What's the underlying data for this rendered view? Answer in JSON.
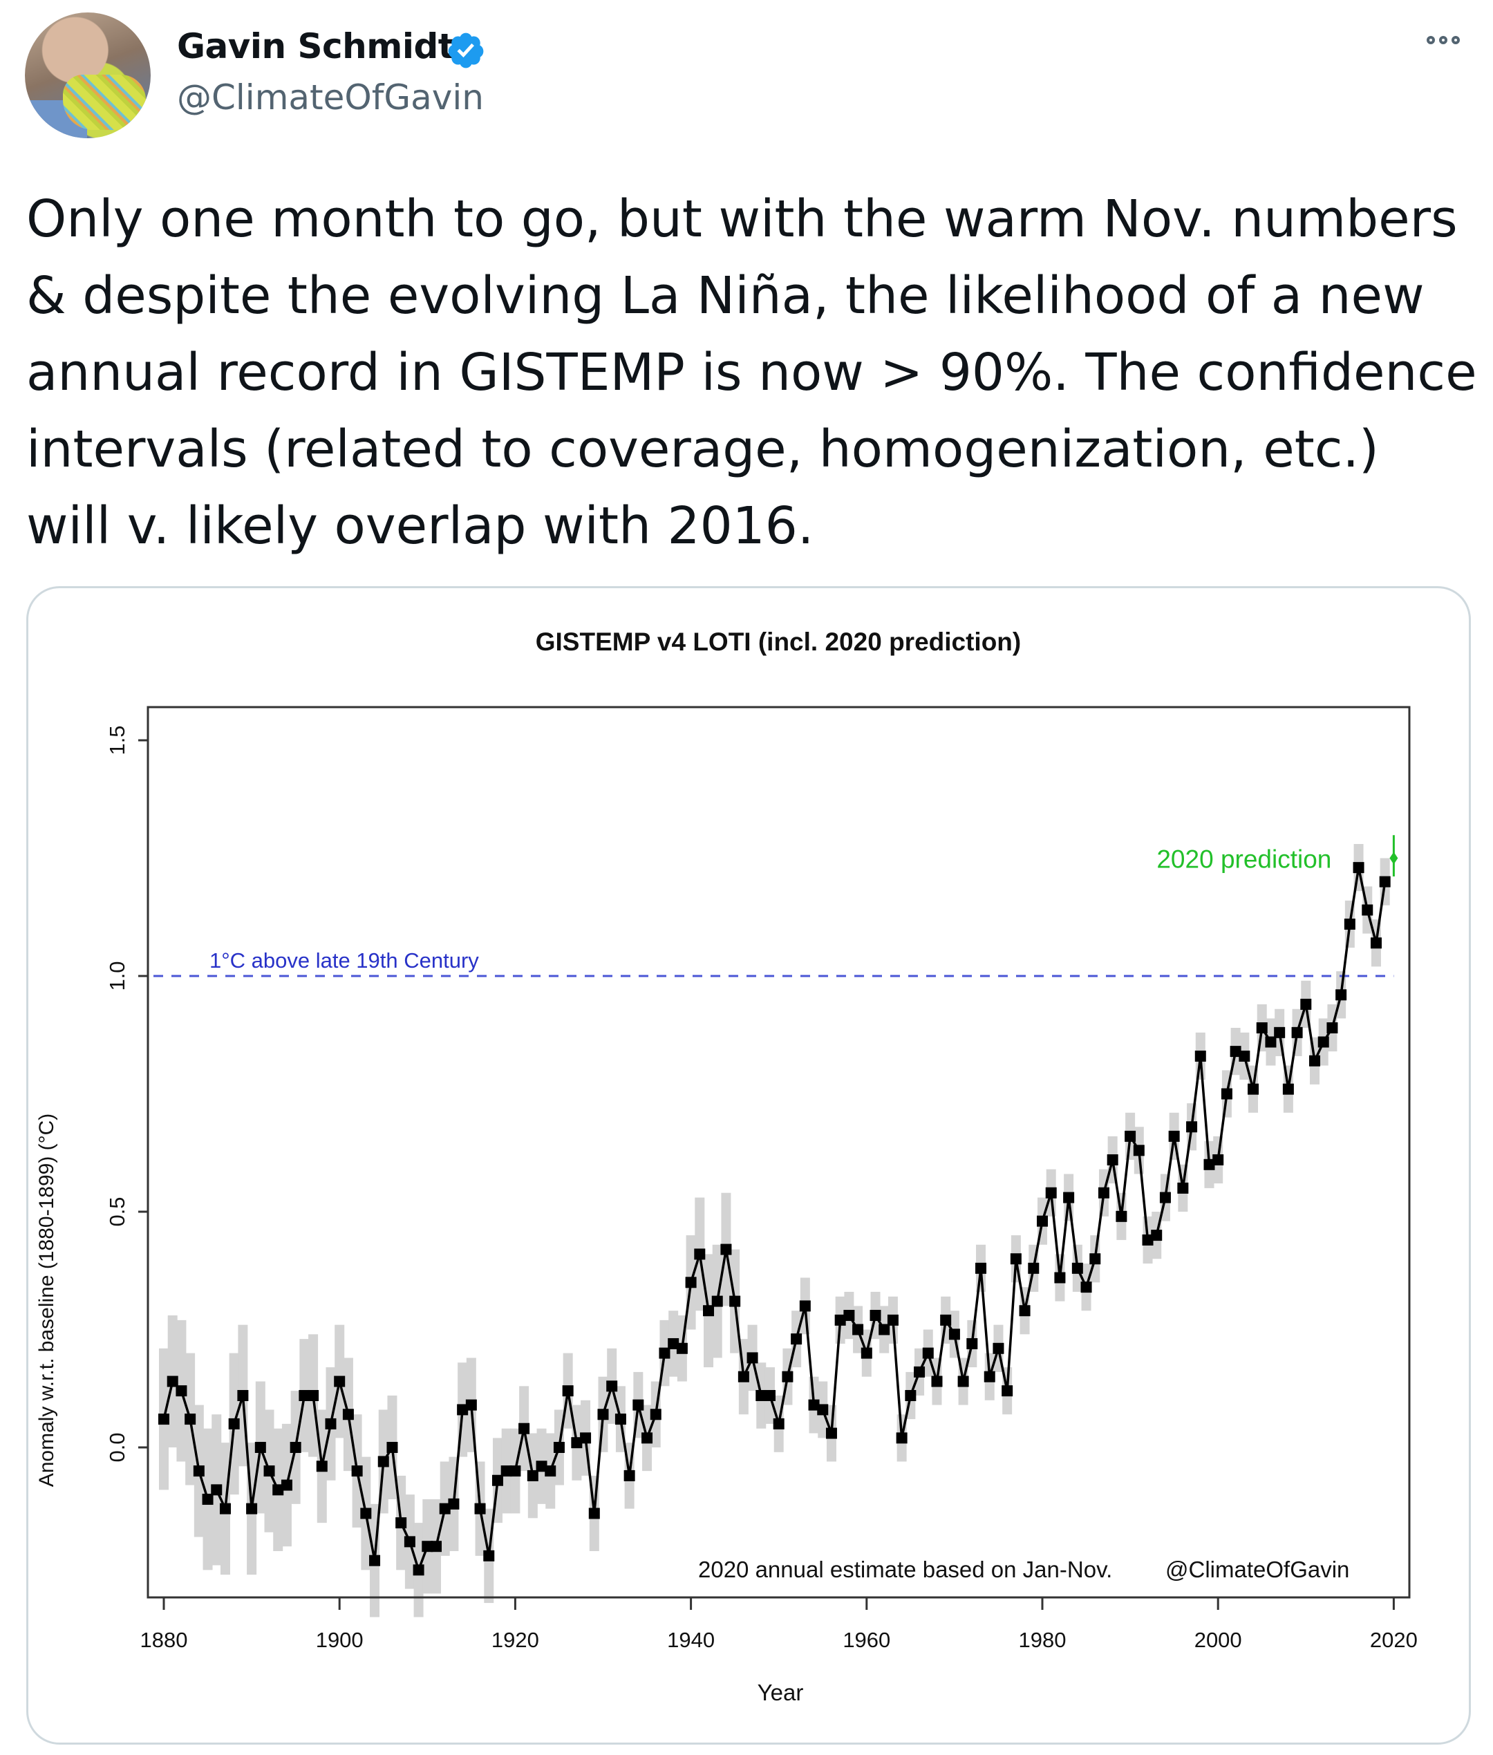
{
  "author": {
    "name": "Gavin Schmidt",
    "handle": "@ClimateOfGavin",
    "verified": true,
    "verified_color": "#1d9bf0"
  },
  "more_icon": "more-options-icon",
  "tweet_text": "Only one month to go, but with the warm Nov. numbers & despite the evolving La Niña, the likelihood of a new annual record in GISTEMP is now > 90%. The confidence intervals (related to coverage, homogenization, etc.) will v. likely overlap with 2016.",
  "chart_data": {
    "type": "line",
    "title": "GISTEMP v4 LOTI (incl. 2020 prediction)",
    "xlabel": "Year",
    "ylabel": "Anomaly w.r.t. baseline (1880-1899) (°C)",
    "xlim": [
      1877,
      2022
    ],
    "ylim": [
      -0.32,
      1.57
    ],
    "xticks": [
      1880,
      1900,
      1920,
      1940,
      1960,
      1980,
      2000,
      2020
    ],
    "xtick_labels": [
      "1880",
      "1900",
      "1920",
      "1940",
      "1960",
      "1980",
      "2000",
      "2020"
    ],
    "yticks": [
      0.0,
      0.5,
      1.0,
      1.5
    ],
    "ytick_labels": [
      "0.0",
      "0.5",
      "1.0",
      "1.5"
    ],
    "grid": false,
    "reference_line": {
      "y": 1.0,
      "label": "1°C above late 19th Century",
      "color": "#4a56d6",
      "style": "dashed"
    },
    "prediction": {
      "x": 2020,
      "y": 1.25,
      "low": 1.22,
      "high": 1.29,
      "label": "2020 prediction",
      "color": "#22c02a"
    },
    "annotation": "2020 annual estimate based on Jan-Nov.",
    "credit": "@ClimateOfGavin",
    "series": [
      {
        "name": "Annual anomaly",
        "color": "#000000",
        "uncertainty_color": "#d3d3d3",
        "x": [
          1880,
          1881,
          1882,
          1883,
          1884,
          1885,
          1886,
          1887,
          1888,
          1889,
          1890,
          1891,
          1892,
          1893,
          1894,
          1895,
          1896,
          1897,
          1898,
          1899,
          1900,
          1901,
          1902,
          1903,
          1904,
          1905,
          1906,
          1907,
          1908,
          1909,
          1910,
          1911,
          1912,
          1913,
          1914,
          1915,
          1916,
          1917,
          1918,
          1919,
          1920,
          1921,
          1922,
          1923,
          1924,
          1925,
          1926,
          1927,
          1928,
          1929,
          1930,
          1931,
          1932,
          1933,
          1934,
          1935,
          1936,
          1937,
          1938,
          1939,
          1940,
          1941,
          1942,
          1943,
          1944,
          1945,
          1946,
          1947,
          1948,
          1949,
          1950,
          1951,
          1952,
          1953,
          1954,
          1955,
          1956,
          1957,
          1958,
          1959,
          1960,
          1961,
          1962,
          1963,
          1964,
          1965,
          1966,
          1967,
          1968,
          1969,
          1970,
          1971,
          1972,
          1973,
          1974,
          1975,
          1976,
          1977,
          1978,
          1979,
          1980,
          1981,
          1982,
          1983,
          1984,
          1985,
          1986,
          1987,
          1988,
          1989,
          1990,
          1991,
          1992,
          1993,
          1994,
          1995,
          1996,
          1997,
          1998,
          1999,
          2000,
          2001,
          2002,
          2003,
          2004,
          2005,
          2006,
          2007,
          2008,
          2009,
          2010,
          2011,
          2012,
          2013,
          2014,
          2015,
          2016,
          2017,
          2018,
          2019
        ],
        "values": [
          0.06,
          0.14,
          0.12,
          0.06,
          -0.05,
          -0.11,
          -0.09,
          -0.13,
          0.05,
          0.11,
          -0.13,
          0.0,
          -0.05,
          -0.09,
          -0.08,
          0.0,
          0.11,
          0.11,
          -0.04,
          0.05,
          0.14,
          0.07,
          -0.05,
          -0.14,
          -0.24,
          -0.03,
          0.0,
          -0.16,
          -0.2,
          -0.26,
          -0.21,
          -0.21,
          -0.13,
          -0.12,
          0.08,
          0.09,
          -0.13,
          -0.23,
          -0.07,
          -0.05,
          -0.05,
          0.04,
          -0.06,
          -0.04,
          -0.05,
          0.0,
          0.12,
          0.01,
          0.02,
          -0.14,
          0.07,
          0.13,
          0.06,
          -0.06,
          0.09,
          0.02,
          0.07,
          0.2,
          0.22,
          0.21,
          0.35,
          0.41,
          0.29,
          0.31,
          0.42,
          0.31,
          0.15,
          0.19,
          0.11,
          0.11,
          0.05,
          0.15,
          0.23,
          0.3,
          0.09,
          0.08,
          0.03,
          0.27,
          0.28,
          0.25,
          0.2,
          0.28,
          0.25,
          0.27,
          0.02,
          0.11,
          0.16,
          0.2,
          0.14,
          0.27,
          0.24,
          0.14,
          0.22,
          0.38,
          0.15,
          0.21,
          0.12,
          0.4,
          0.29,
          0.38,
          0.48,
          0.54,
          0.36,
          0.53,
          0.38,
          0.34,
          0.4,
          0.54,
          0.61,
          0.49,
          0.66,
          0.63,
          0.44,
          0.45,
          0.53,
          0.66,
          0.55,
          0.68,
          0.83,
          0.6,
          0.61,
          0.75,
          0.84,
          0.83,
          0.76,
          0.89,
          0.86,
          0.88,
          0.76,
          0.88,
          0.94,
          0.82,
          0.86,
          0.89,
          0.96,
          1.11,
          1.23,
          1.14,
          1.07,
          1.2
        ],
        "uncertainty_halfwidth": [
          0.15,
          0.14,
          0.15,
          0.14,
          0.14,
          0.15,
          0.16,
          0.14,
          0.15,
          0.15,
          0.14,
          0.14,
          0.13,
          0.13,
          0.13,
          0.12,
          0.12,
          0.13,
          0.12,
          0.12,
          0.12,
          0.12,
          0.12,
          0.12,
          0.12,
          0.11,
          0.11,
          0.1,
          0.1,
          0.1,
          0.1,
          0.1,
          0.1,
          0.1,
          0.1,
          0.1,
          0.1,
          0.1,
          0.09,
          0.09,
          0.09,
          0.09,
          0.09,
          0.08,
          0.08,
          0.08,
          0.08,
          0.08,
          0.08,
          0.08,
          0.08,
          0.08,
          0.07,
          0.07,
          0.07,
          0.07,
          0.07,
          0.07,
          0.07,
          0.07,
          0.1,
          0.12,
          0.12,
          0.12,
          0.12,
          0.11,
          0.08,
          0.07,
          0.07,
          0.06,
          0.06,
          0.06,
          0.06,
          0.06,
          0.06,
          0.06,
          0.06,
          0.05,
          0.05,
          0.05,
          0.05,
          0.05,
          0.05,
          0.05,
          0.05,
          0.05,
          0.05,
          0.05,
          0.05,
          0.05,
          0.05,
          0.05,
          0.05,
          0.05,
          0.05,
          0.05,
          0.05,
          0.05,
          0.05,
          0.05,
          0.05,
          0.05,
          0.05,
          0.05,
          0.05,
          0.05,
          0.05,
          0.05,
          0.05,
          0.05,
          0.05,
          0.05,
          0.05,
          0.05,
          0.05,
          0.05,
          0.05,
          0.05,
          0.05,
          0.05,
          0.05,
          0.05,
          0.05,
          0.05,
          0.05,
          0.05,
          0.05,
          0.05,
          0.05,
          0.05,
          0.05,
          0.05,
          0.05,
          0.05,
          0.05,
          0.05,
          0.05,
          0.05,
          0.05,
          0.05
        ]
      }
    ]
  }
}
